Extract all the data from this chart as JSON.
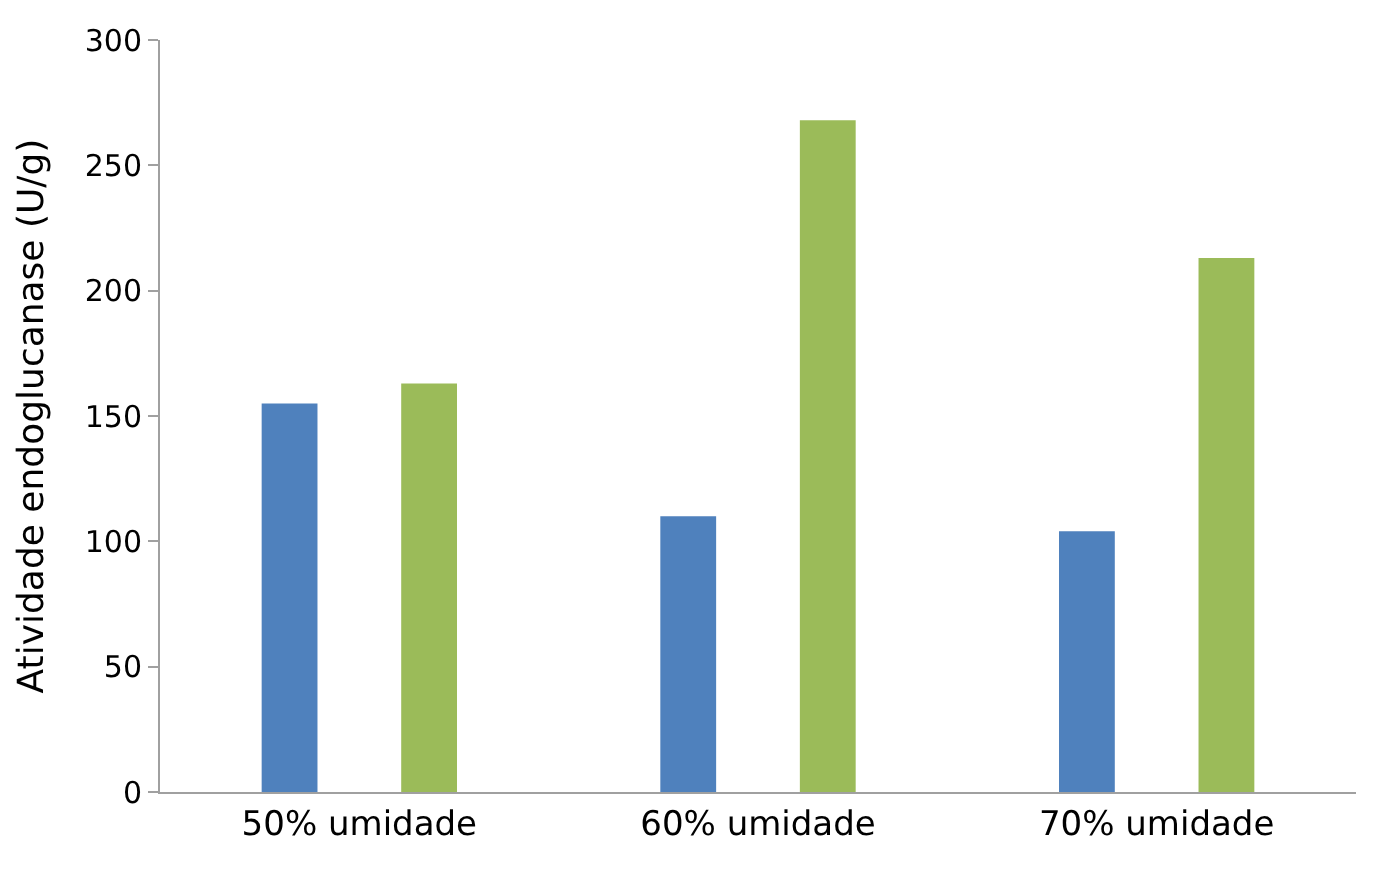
{
  "chart_data": {
    "type": "bar",
    "ylabel": "Atividade endoglucanase (U/g)",
    "categories": [
      "50% umidade",
      "60% umidade",
      "70% umidade"
    ],
    "series": [
      {
        "color": "#4f81bd",
        "values": [
          155,
          110,
          104
        ]
      },
      {
        "color": "#9bbb59",
        "values": [
          163,
          268,
          213
        ]
      }
    ],
    "ylim": [
      0,
      300
    ],
    "yticks": [
      0,
      50,
      100,
      150,
      200,
      250,
      300
    ]
  }
}
